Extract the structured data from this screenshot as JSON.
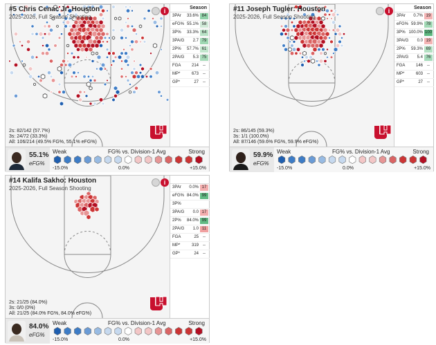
{
  "cards": [
    {
      "title": "#5 Chris Cenac Jr: Houston",
      "subtitle": "2025-2026, Full Season Shooting",
      "summary": [
        "2s: 82/142 (57.7%)",
        "3s: 24/72 (33.3%)",
        "All: 106/214 (49.5% FG%, 55.1% eFG%)"
      ],
      "efg": "55.1%",
      "efg_label": "eFG%",
      "stats_header": "Season",
      "stats": [
        {
          "label": "3PAr",
          "value": "33.6%",
          "pctile": "84",
          "color": "#8fd1a8"
        },
        {
          "label": "eFG%",
          "value": "55.1%",
          "pctile": "58",
          "color": "#cfe9d7"
        },
        {
          "label": "3P%",
          "value": "33.3%",
          "pctile": "64",
          "color": "#b9e2c6"
        },
        {
          "label": "3PA/G",
          "value": "2.7",
          "pctile": "79",
          "color": "#9fd8b3"
        },
        {
          "label": "2P%",
          "value": "57.7%",
          "pctile": "61",
          "color": "#c2e6cd"
        },
        {
          "label": "2PA/G",
          "value": "5.3",
          "pctile": "75",
          "color": "#a7dbb9"
        },
        {
          "label": "FGA",
          "value": "214",
          "pctile": "--",
          "color": ""
        },
        {
          "label": "MP*",
          "value": "673",
          "pctile": "--",
          "color": ""
        },
        {
          "label": "GP*",
          "value": "27",
          "pctile": "--",
          "color": ""
        }
      ]
    },
    {
      "title": "#11 Joseph Tugler: Houston",
      "subtitle": "2025-2026, Full Season Shooting",
      "summary": [
        "2s: 86/145 (59.3%)",
        "3s: 1/1 (100.0%)",
        "All: 87/146 (59.6% FG%, 59.9% eFG%)"
      ],
      "efg": "59.9%",
      "efg_label": "eFG%",
      "stats_header": "Season",
      "stats": [
        {
          "label": "3PAr",
          "value": "0.7%",
          "pctile": "19",
          "color": "#f4b4b4"
        },
        {
          "label": "eFG%",
          "value": "59.9%",
          "pctile": "78",
          "color": "#a1d9b5"
        },
        {
          "label": "3P%",
          "value": "100.0%",
          "pctile": "100",
          "color": "#5cb87f"
        },
        {
          "label": "3PA/G",
          "value": "0.0",
          "pctile": "19",
          "color": "#f4b4b4"
        },
        {
          "label": "2P%",
          "value": "59.3%",
          "pctile": "69",
          "color": "#b3e0c2"
        },
        {
          "label": "2PA/G",
          "value": "5.4",
          "pctile": "76",
          "color": "#a5daba"
        },
        {
          "label": "FGA",
          "value": "146",
          "pctile": "--",
          "color": ""
        },
        {
          "label": "MP*",
          "value": "603",
          "pctile": "--",
          "color": ""
        },
        {
          "label": "GP*",
          "value": "27",
          "pctile": "--",
          "color": ""
        }
      ]
    },
    {
      "title": "#14 Kalifa Sakho: Houston",
      "subtitle": "2025-2026, Full Season Shooting",
      "summary": [
        "2s: 21/25 (84.0%)",
        "3s: 0/0 (0%)",
        "All: 21/25 (84.0% FG%, 84.0% eFG%)"
      ],
      "efg": "84.0%",
      "efg_label": "eFG%",
      "stats_header": "",
      "stats": [
        {
          "label": "3PAr",
          "value": "0.0%",
          "pctile": "17",
          "color": "#f3adad"
        },
        {
          "label": "eFG%",
          "value": "84.0%",
          "pctile": "99",
          "color": "#62ba84"
        },
        {
          "label": "3P%",
          "value": "",
          "pctile": "",
          "color": ""
        },
        {
          "label": "3PA/G",
          "value": "0.0",
          "pctile": "17",
          "color": "#f3adad"
        },
        {
          "label": "2P%",
          "value": "84.0%",
          "pctile": "99",
          "color": "#62ba84"
        },
        {
          "label": "2PA/G",
          "value": "1.0",
          "pctile": "11",
          "color": "#f0a0a0"
        },
        {
          "label": "FGA",
          "value": "25",
          "pctile": "--",
          "color": ""
        },
        {
          "label": "MP*",
          "value": "319",
          "pctile": "--",
          "color": ""
        },
        {
          "label": "GP*",
          "value": "24",
          "pctile": "--",
          "color": ""
        }
      ]
    }
  ],
  "legend": {
    "weak": "Weak",
    "strong": "Strong",
    "heading": "FG% vs. Division-1 Avg",
    "min": "-15.0%",
    "mid": "0.0%",
    "max": "+15.0%"
  },
  "colors": {
    "hot": "#c8102e",
    "cold": "#2f6fbf",
    "brand": "#c8102e"
  },
  "icons": {
    "logo": "uh-logo",
    "info": "info-icon",
    "toggle": "toggle-circle-icon"
  }
}
